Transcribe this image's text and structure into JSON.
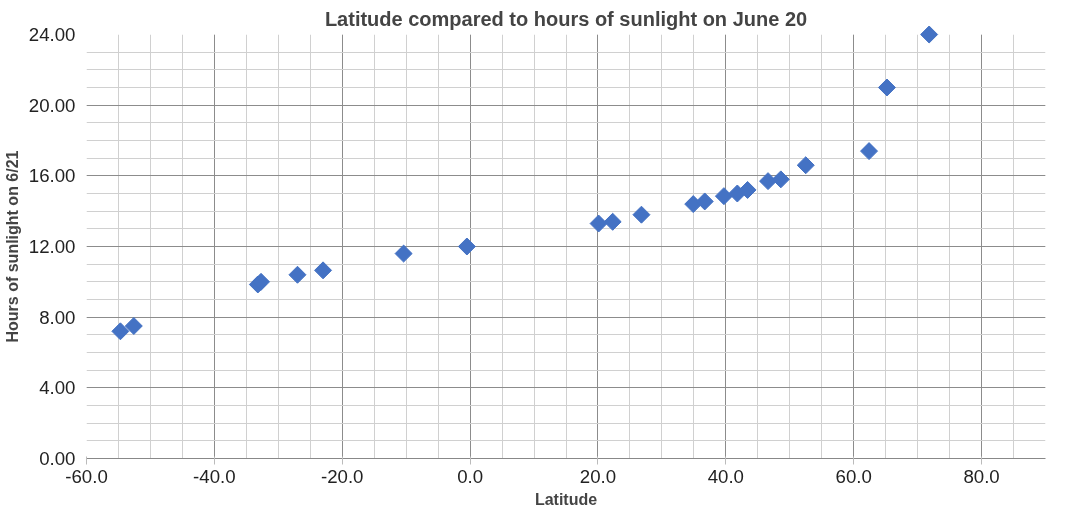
{
  "chart_data": {
    "type": "scatter",
    "title": "Latitude compared to hours of sunlight on June 20",
    "xlabel": "Latitude",
    "ylabel": "Hours of sunlight on 6/21",
    "x": [
      -54.7,
      -52.6,
      -33.2,
      -32.7,
      -27.0,
      -23.0,
      -10.4,
      -0.5,
      20.1,
      22.3,
      26.8,
      34.9,
      36.7,
      39.7,
      41.8,
      43.4,
      46.6,
      48.6,
      52.5,
      62.4,
      65.2,
      71.8
    ],
    "series": [
      {
        "color": "#4472c4",
        "values": [
          7.2,
          7.5,
          9.85,
          10.0,
          10.4,
          10.65,
          11.6,
          12.0,
          13.3,
          13.4,
          13.8,
          14.4,
          14.55,
          14.85,
          15.0,
          15.2,
          15.7,
          15.8,
          16.6,
          17.4,
          21.0,
          24.0
        ]
      }
    ],
    "marker": "diamond",
    "grid": true,
    "xlim": [
      -60,
      90
    ],
    "xticks": [
      {
        "value": -60,
        "label": "-60.0"
      },
      {
        "value": -40,
        "label": "-40.0"
      },
      {
        "value": -20,
        "label": "-20.0"
      },
      {
        "value": 0,
        "label": "0.0"
      },
      {
        "value": 20,
        "label": "20.0"
      },
      {
        "value": 40,
        "label": "40.0"
      },
      {
        "value": 60,
        "label": "60.0"
      },
      {
        "value": 80,
        "label": "80.0"
      }
    ],
    "ylim": [
      0,
      24
    ],
    "yticks": [
      {
        "value": 0,
        "label": "0.00"
      },
      {
        "value": 4,
        "label": "4.00"
      },
      {
        "value": 8,
        "label": "8.00"
      },
      {
        "value": 12,
        "label": "12.00"
      },
      {
        "value": 16,
        "label": "16.00"
      },
      {
        "value": 20,
        "label": "20.00"
      },
      {
        "value": 24,
        "label": "24.00"
      }
    ]
  }
}
